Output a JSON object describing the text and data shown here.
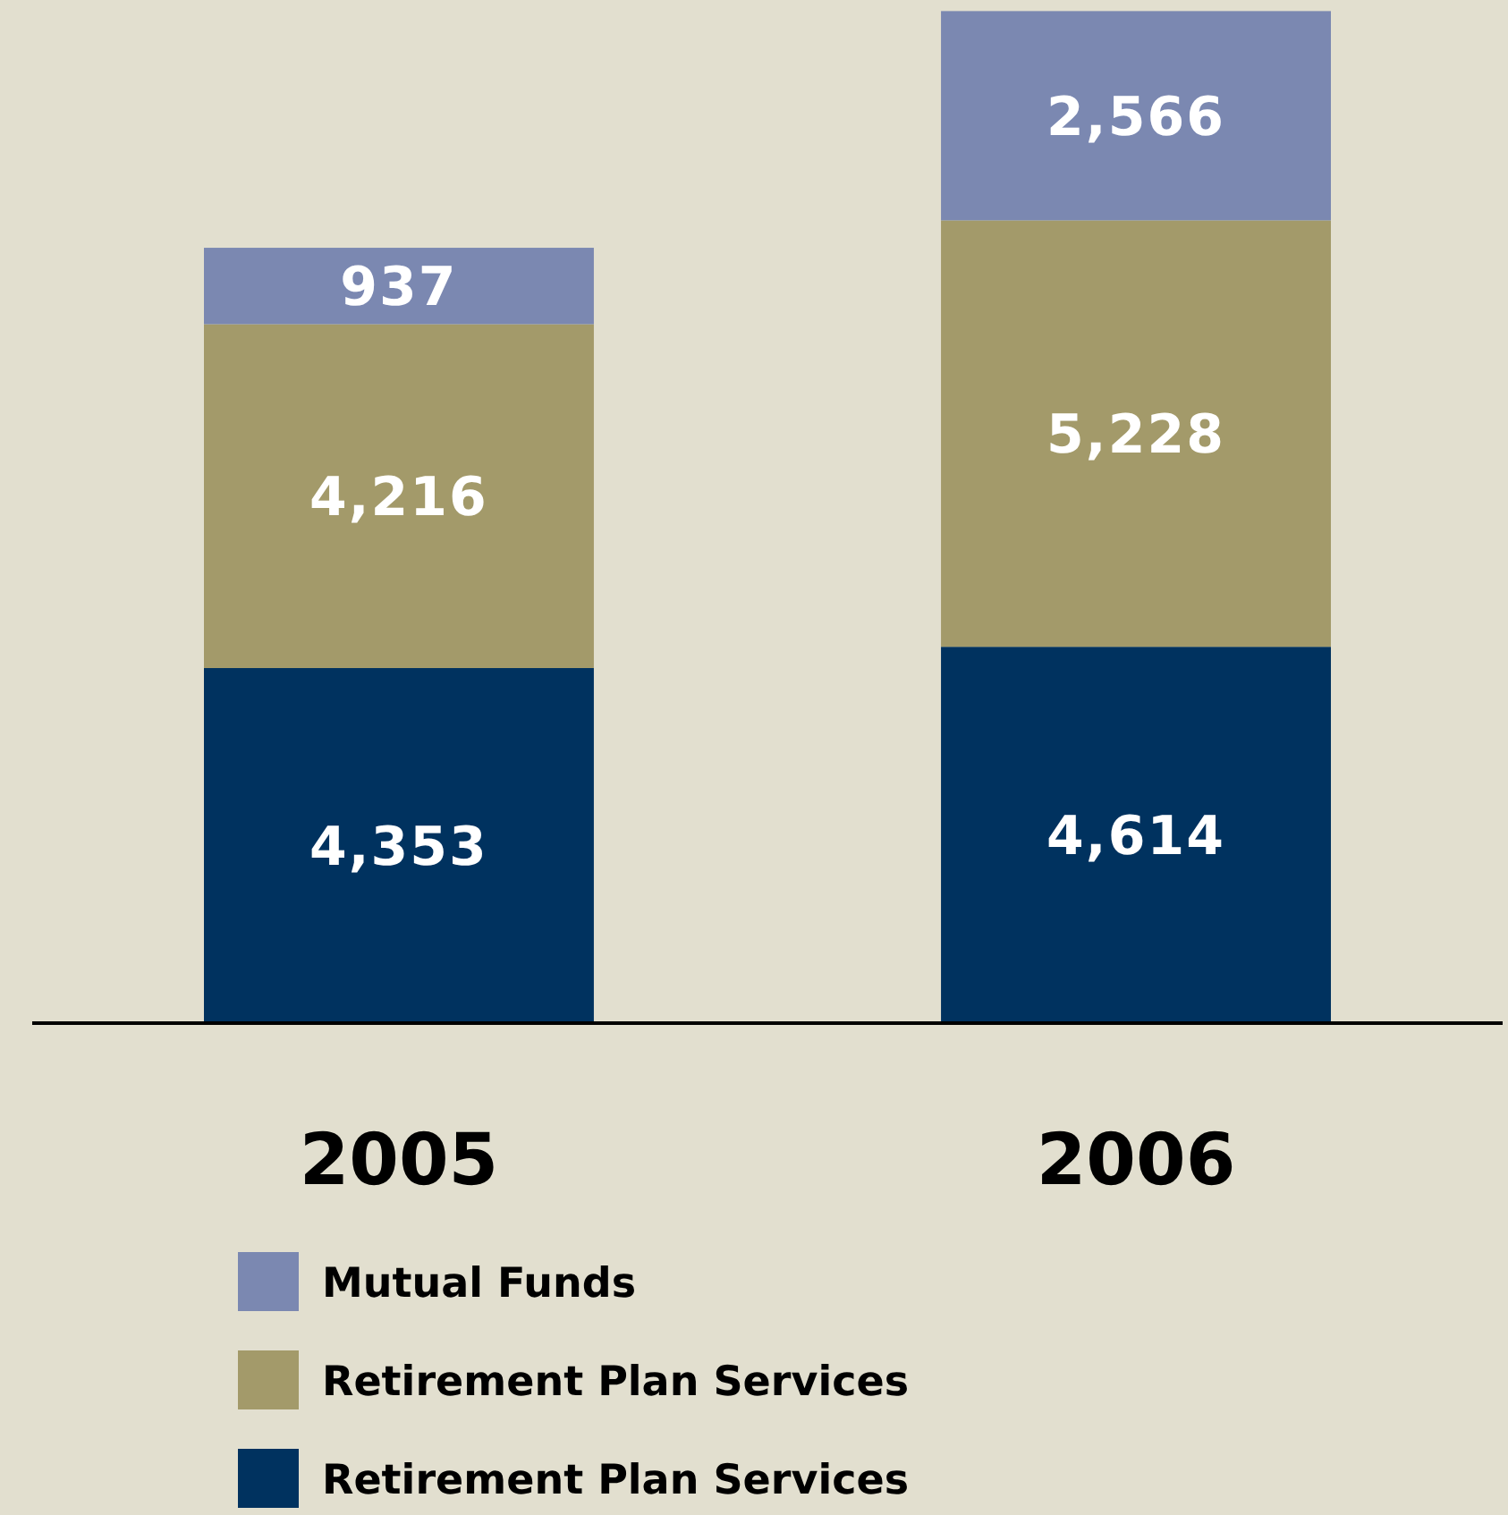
{
  "chart_data": {
    "type": "bar",
    "stacked": true,
    "categories": [
      "2005",
      "2006"
    ],
    "series": [
      {
        "name": "Retirement Plan Services",
        "color": "#00325f",
        "values": [
          4353,
          4614
        ],
        "value_labels": [
          "4,353",
          "4,614"
        ]
      },
      {
        "name": "Retirement Plan Services",
        "color": "#a39a6a",
        "values": [
          4216,
          5228
        ],
        "value_labels": [
          "4,216",
          "5,228"
        ]
      },
      {
        "name": "Mutual Funds",
        "color": "#7b88b1",
        "values": [
          937,
          2566
        ],
        "value_labels": [
          "937",
          "2,566"
        ]
      }
    ],
    "ylim": [
      0,
      12500
    ],
    "tick_labels": "x",
    "legend": "bottom"
  }
}
